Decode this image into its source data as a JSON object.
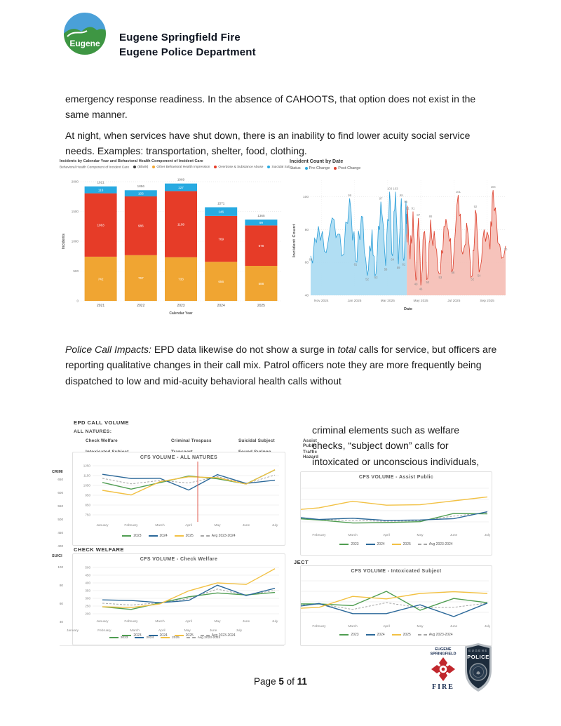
{
  "header": {
    "logo_text": "Eugene",
    "line1": "Eugene Springfield Fire",
    "line2": "Eugene Police Department"
  },
  "paragraphs": {
    "p1": "emergency response readiness. In the absence of CAHOOTS, that option does not exist in the same manner.",
    "p2": "At night, when services have shut down, there is an inability to find lower acuity social service needs. Examples: transportation, shelter, food, clothing.",
    "p3_lead": "Police Call Impacts:",
    "p3_a": " EPD data likewise do not show a surge in ",
    "p3_em": "total",
    "p3_b": " calls for service, but officers are reporting qualitative changes in their call mix. Patrol officers note they are more frequently being dispatched to low and mid-acuity behavioral health calls without",
    "p4": "criminal elements such as welfare checks, “subject down” calls for intoxicated or unconscious individuals,"
  },
  "lower": {
    "section_title": "EPD CALL VOLUME",
    "subsection": "ALL NATURES:",
    "natures": [
      "Check Welfare",
      "Criminal Trespass",
      "Suicidal Subject",
      "Assist Public",
      "Intoxicated Subject",
      "Transport",
      "Found Syringe",
      "Traffic Hazard"
    ],
    "check_welfare_label": "CHECK WELFARE",
    "cropped_right_label": "JECT",
    "cropped_left": {
      "chart1_label": "CRIMI",
      "chart1_ticks": [
        "650",
        "600",
        "550",
        "500",
        "450",
        "400"
      ],
      "chart2_label": "SUICI",
      "chart2_ticks": [
        "100",
        "80",
        "60",
        "40"
      ]
    },
    "cropped_bottom_months": [
      "January",
      "February",
      "March",
      "April",
      "May",
      "June",
      "July"
    ],
    "small_legend": [
      "2023",
      "2024",
      "2025",
      "Avg 2023-2024"
    ]
  },
  "footer": {
    "page_word": "Page",
    "page_num": "5",
    "of_word": "of",
    "total": "11",
    "fire": {
      "line1": "EUGENE",
      "line2": "SPRINGFIELD",
      "line3": "FIRE"
    },
    "police": {
      "line1": "EUGENE",
      "line2": "POLICE"
    }
  },
  "colors": {
    "bar_orange": "#F0A532",
    "bar_red": "#E63C28",
    "bar_blue": "#28AAE1",
    "pre_fill": "#A9DAF2",
    "pre_stroke": "#2D9FD8",
    "post_fill": "#F5BDB4",
    "post_stroke": "#DC3E2B",
    "line_green": "#4F9D51",
    "line_blue": "#2B6899",
    "line_yellow": "#F2C144",
    "line_gray": "#A5A5A5",
    "vline_red": "#E05C50",
    "navy": "#14294E",
    "fire_red": "#C1272D"
  },
  "chart_data": [
    {
      "id": "incidents_by_year",
      "type": "bar",
      "stacked": true,
      "title": "Incidents by Calendar Year and Behavioral Health Component of Incident Care",
      "legend_title": "Behavioral Health Component of Incident Care",
      "legend": [
        {
          "label": "(Blank)",
          "color": "#3a3a3a"
        },
        {
          "label": "Other Behavioral Health Impression",
          "color": "#F0A532"
        },
        {
          "label": "Overdose & Substance Abuse",
          "color": "#E63C28"
        },
        {
          "label": "Suicidal Subject",
          "color": "#28AAE1"
        }
      ],
      "categories": [
        "2021",
        "2022",
        "2023",
        "2024",
        "2025"
      ],
      "series": [
        {
          "name": "Other Behavioral Health Impression",
          "color": "#F0A532",
          "values": [
            742,
            767,
            733,
            656,
            588
          ]
        },
        {
          "name": "Overdose & Substance Abuse",
          "color": "#E63C28",
          "values": [
            1063,
            986,
            1109,
            769,
            678
          ]
        },
        {
          "name": "Suicidal Subject",
          "color": "#28AAE1",
          "values": [
            116,
            103,
            127,
            146,
            99
          ]
        }
      ],
      "totals": [
        1921,
        1856,
        1969,
        1571,
        1365
      ],
      "xlabel": "Calendar Year",
      "ylabel": "Incidents",
      "yticks": [
        0,
        500,
        1000,
        1500,
        2000
      ],
      "ylim": [
        0,
        2100
      ]
    },
    {
      "id": "incident_count_by_date",
      "type": "area",
      "title": "Incident Count by Date",
      "legend_title": "Status",
      "legend": [
        {
          "label": "Pre-Change",
          "color": "#28AAE1"
        },
        {
          "label": "Post-Change",
          "color": "#DC3E2B"
        }
      ],
      "xlabel": "Date",
      "ylabel": "Incident Count",
      "ylim": [
        40,
        110
      ],
      "yticks": [
        40,
        60,
        80,
        100
      ],
      "xticks": [
        "Nov 2024",
        "Jan 2025",
        "Mar 2025",
        "May 2025",
        "Jul 2025",
        "Sep 2025"
      ],
      "annotations": {
        "pre_change_peaks": [
          99,
          97,
          103,
          103,
          99,
          95
        ],
        "pre_change_lows": [
          64,
          61,
          52,
          53,
          58,
          64,
          59,
          61
        ],
        "post_change_peaks": [
          91,
          91,
          87,
          86,
          101,
          92,
          104
        ],
        "post_change_lows": [
          49,
          46,
          50,
          53,
          56,
          52,
          54,
          70
        ]
      }
    },
    {
      "id": "cfs_all_natures",
      "type": "line",
      "title": "CFS VOLUME - ALL NATURES",
      "categories": [
        "January",
        "February",
        "March",
        "April",
        "May",
        "June",
        "July"
      ],
      "yticks": [
        1250,
        1150,
        1050,
        950,
        850,
        750
      ],
      "ylim": [
        700,
        1270
      ],
      "vline_after_category": "April",
      "series": [
        {
          "name": "2023",
          "color": "#4F9D51",
          "values": [
            1080,
            1012,
            1078,
            1145,
            1118,
            1065,
            1208
          ]
        },
        {
          "name": "2024",
          "color": "#2B6899",
          "values": [
            1163,
            1120,
            1122,
            1003,
            1160,
            1070,
            1103
          ]
        },
        {
          "name": "2025",
          "color": "#F2C144",
          "values": [
            1000,
            953,
            1088,
            1138,
            1128,
            1063,
            1210
          ]
        },
        {
          "name": "Avg 2023-2024",
          "color": "#A5A5A5",
          "dash": true,
          "values": [
            1122,
            1066,
            1100,
            1074,
            1139,
            1068,
            1156
          ]
        }
      ]
    },
    {
      "id": "cfs_check_welfare",
      "type": "line",
      "title": "CFS VOLUME - Check Welfare",
      "categories": [
        "January",
        "February",
        "March",
        "April",
        "May",
        "June",
        "July"
      ],
      "yticks": [
        500,
        450,
        400,
        350,
        300,
        250,
        200
      ],
      "ylim": [
        180,
        510
      ],
      "series": [
        {
          "name": "2023",
          "color": "#4F9D51",
          "values": [
            245,
            228,
            270,
            310,
            335,
            322,
            338
          ]
        },
        {
          "name": "2024",
          "color": "#2B6899",
          "values": [
            290,
            286,
            272,
            286,
            385,
            318,
            365
          ]
        },
        {
          "name": "2025",
          "color": "#F2C144",
          "values": [
            246,
            240,
            264,
            348,
            400,
            390,
            492
          ]
        },
        {
          "name": "Avg 2023-2024",
          "color": "#A5A5A5",
          "dash": true,
          "values": [
            268,
            257,
            271,
            298,
            360,
            320,
            352
          ]
        }
      ]
    },
    {
      "id": "cfs_assist_public",
      "type": "line",
      "title": "CFS VOLUME - Assist Public",
      "categories": [
        "January",
        "February",
        "March",
        "April",
        "May",
        "June",
        "July"
      ],
      "units": "relative (y-axis cropped out of view)",
      "ylim": [
        0,
        100
      ],
      "series": [
        {
          "name": "2023",
          "color": "#4F9D51",
          "values": [
            32,
            27,
            20,
            21,
            23,
            42,
            41
          ]
        },
        {
          "name": "2024",
          "color": "#2B6899",
          "values": [
            36,
            28,
            31,
            26,
            27,
            30,
            46
          ]
        },
        {
          "name": "2025",
          "color": "#F2C144",
          "values": [
            48,
            55,
            70,
            61,
            62,
            71,
            80
          ]
        },
        {
          "name": "Avg 2023-2024",
          "color": "#A5A5A5",
          "dash": true,
          "values": [
            34,
            28,
            26,
            24,
            25,
            36,
            44
          ]
        }
      ]
    },
    {
      "id": "cfs_intoxicated_subject",
      "type": "line",
      "title": "CFS VOLUME - Intoxicated Subject",
      "categories": [
        "January",
        "February",
        "March",
        "April",
        "May",
        "June",
        "July"
      ],
      "units": "relative (y-axis cropped out of view)",
      "ylim": [
        0,
        100
      ],
      "series": [
        {
          "name": "2023",
          "color": "#4F9D51",
          "values": [
            45,
            45,
            41,
            75,
            30,
            58,
            48
          ]
        },
        {
          "name": "2024",
          "color": "#2B6899",
          "values": [
            35,
            46,
            22,
            22,
            43,
            15,
            47
          ]
        },
        {
          "name": "2025",
          "color": "#F2C144",
          "values": [
            33,
            37,
            63,
            57,
            70,
            74,
            70
          ]
        },
        {
          "name": "Avg 2023-2024",
          "color": "#A5A5A5",
          "dash": true,
          "values": [
            40,
            45,
            32,
            48,
            36,
            37,
            47
          ]
        }
      ]
    }
  ]
}
